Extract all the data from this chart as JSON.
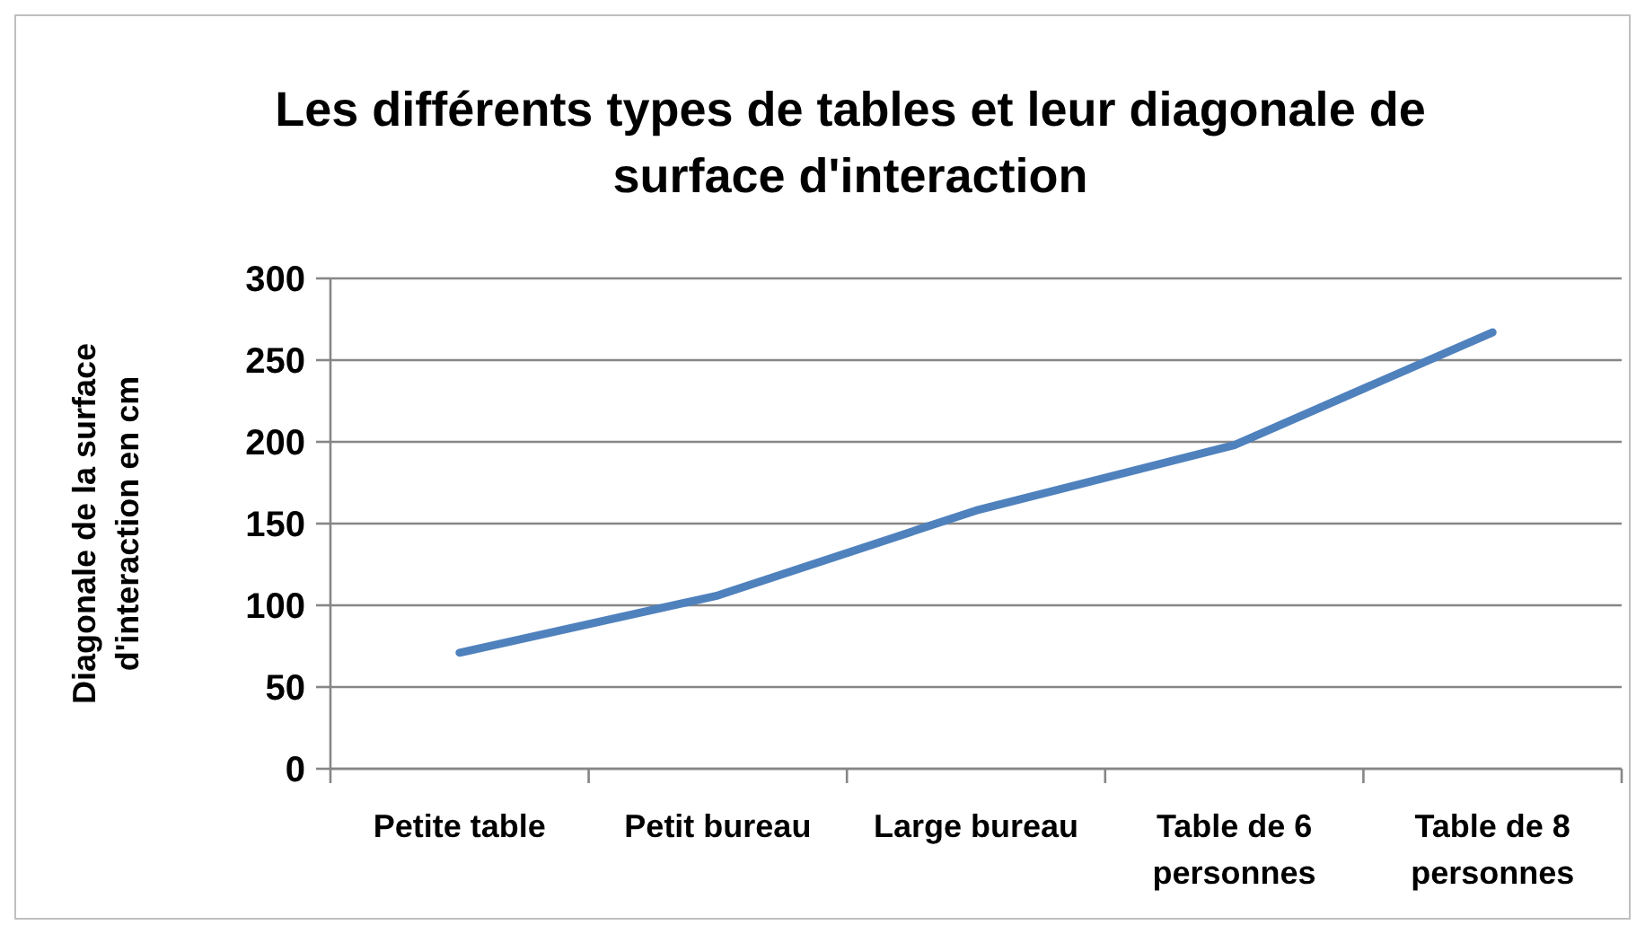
{
  "chart_data": {
    "type": "line",
    "title": "Les différents types de tables et leur diagonale de surface d'interaction",
    "ylabel": "Diagonale de la surface d'interaction en cm",
    "categories": [
      "Petite table",
      "Petit bureau",
      "Large bureau",
      "Table de 6 personnes",
      "Table de 8 personnes"
    ],
    "series": [
      {
        "color": "#4f81bd",
        "values": [
          71,
          106,
          158,
          198,
          267
        ]
      }
    ],
    "ylim": [
      0,
      300
    ],
    "yticks": [
      0,
      50,
      100,
      150,
      200,
      250,
      300
    ],
    "grid": "y",
    "marker": "none",
    "line_style": "solid"
  }
}
